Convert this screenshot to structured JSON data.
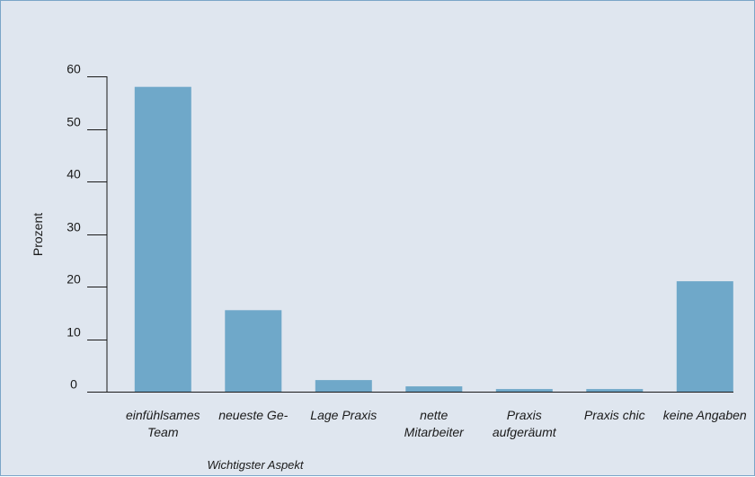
{
  "chart_data": {
    "type": "bar",
    "categories": [
      [
        "einfühlsames",
        "Team"
      ],
      [
        "neueste Ge-"
      ],
      [
        "Lage Praxis"
      ],
      [
        "nette",
        "Mitarbeiter"
      ],
      [
        "Praxis",
        "aufgeräumt"
      ],
      [
        "Praxis chic"
      ],
      [
        "keine Angaben"
      ]
    ],
    "values": [
      58,
      15.5,
      2.2,
      1.0,
      0.5,
      0.5,
      21
    ],
    "ylabel": "Prozent",
    "xlabel": "Wichtigster Aspekt",
    "ylim": [
      0,
      60
    ],
    "yticks": [
      0,
      10,
      20,
      30,
      40,
      50,
      60
    ],
    "bar_color": "#6fa8c9",
    "axis_color": "#1a1a1a",
    "background": "#dfe6ef",
    "grid": false
  }
}
